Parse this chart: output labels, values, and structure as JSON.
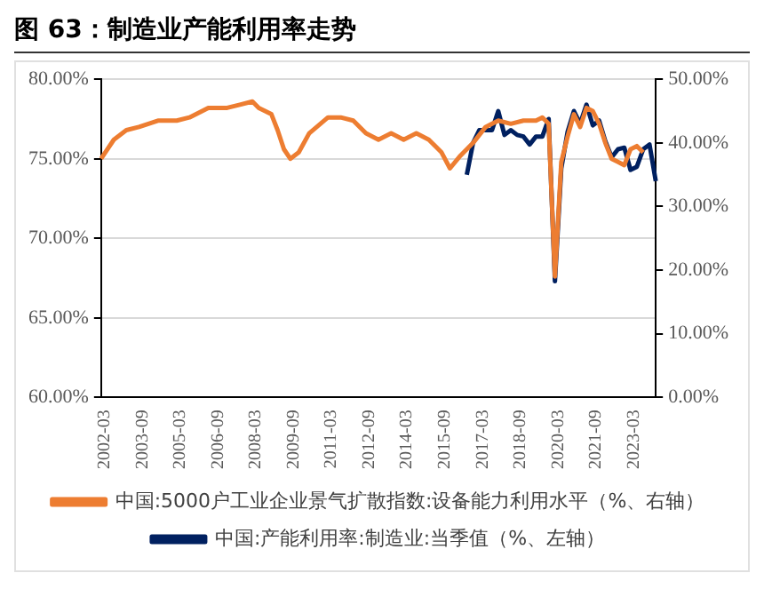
{
  "chart_data": {
    "type": "line",
    "title": "图 63：制造业产能利用率走势",
    "xlim": [
      "2002-03",
      "2024-03"
    ],
    "xticks": [
      "2002-03",
      "2003-09",
      "2005-03",
      "2006-09",
      "2008-03",
      "2009-09",
      "2011-03",
      "2012-09",
      "2014-03",
      "2015-09",
      "2017-03",
      "2018-09",
      "2020-03",
      "2021-09",
      "2023-03"
    ],
    "ylim": [
      60,
      80
    ],
    "yticks": [
      {
        "value": 60,
        "label": "60.00%"
      },
      {
        "value": 65,
        "label": "65.00%"
      },
      {
        "value": 70,
        "label": "70.00%"
      },
      {
        "value": 75,
        "label": "75.00%"
      },
      {
        "value": 80,
        "label": "80.00%"
      }
    ],
    "y2lim": [
      0,
      50
    ],
    "y2ticks": [
      {
        "value": 0,
        "label": "0.00%"
      },
      {
        "value": 10,
        "label": "10.00%"
      },
      {
        "value": 20,
        "label": "20.00%"
      },
      {
        "value": 30,
        "label": "30.00%"
      },
      {
        "value": 40,
        "label": "40.00%"
      },
      {
        "value": 50,
        "label": "50.00%"
      }
    ],
    "grid": "y",
    "legend": "bottom",
    "series": [
      {
        "name": "中国:产能利用率:制造业:当季值（%、左轴）",
        "color": "#002060",
        "x": [
          "2016-09",
          "2016-12",
          "2017-03",
          "2017-06",
          "2017-09",
          "2017-12",
          "2018-03",
          "2018-06",
          "2018-09",
          "2018-12",
          "2019-03",
          "2019-06",
          "2019-09",
          "2019-12",
          "2020-03",
          "2020-06",
          "2020-09",
          "2020-12",
          "2021-03",
          "2021-06",
          "2021-09",
          "2021-12",
          "2022-03",
          "2022-06",
          "2022-09",
          "2022-12",
          "2023-03",
          "2023-06",
          "2023-09",
          "2023-12",
          "2024-03"
        ],
        "values": [
          74.0,
          76.0,
          76.8,
          76.8,
          76.8,
          78.0,
          76.5,
          76.8,
          76.5,
          76.4,
          75.9,
          76.4,
          76.4,
          77.5,
          67.3,
          74.4,
          76.7,
          78.0,
          77.2,
          78.4,
          77.1,
          77.4,
          76.1,
          75.1,
          75.6,
          75.7,
          74.3,
          74.5,
          75.6,
          75.9,
          73.6
        ]
      },
      {
        "name": "中国:5000户工业企业景气扩散指数:设备能力利用水平（%、右轴）",
        "color": "#ed7d31",
        "axis": "y2",
        "x": [
          "2002-03",
          "2002-09",
          "2003-03",
          "2003-09",
          "2004-06",
          "2005-03",
          "2005-09",
          "2006-06",
          "2007-03",
          "2007-09",
          "2008-03",
          "2008-06",
          "2008-12",
          "2009-03",
          "2009-06",
          "2009-09",
          "2010-01",
          "2010-06",
          "2011-03",
          "2011-09",
          "2012-03",
          "2012-09",
          "2013-03",
          "2013-09",
          "2014-03",
          "2014-09",
          "2015-03",
          "2015-09",
          "2016-01",
          "2016-06",
          "2016-12",
          "2017-06",
          "2017-12",
          "2018-06",
          "2018-12",
          "2019-06",
          "2019-09",
          "2019-12",
          "2020-03",
          "2020-06",
          "2020-09",
          "2020-12",
          "2021-03",
          "2021-06",
          "2021-09",
          "2021-12",
          "2022-03",
          "2022-06",
          "2022-09",
          "2022-12",
          "2023-03",
          "2023-06",
          "2023-09"
        ],
        "values": [
          37.5,
          40.5,
          42,
          42.5,
          43.5,
          43.5,
          44,
          45.5,
          45.5,
          46,
          46.5,
          45.5,
          44.5,
          42,
          39,
          37.5,
          38.5,
          41.5,
          44,
          44,
          43.5,
          41.5,
          40.5,
          41.5,
          40.5,
          41.5,
          40.5,
          38.5,
          36,
          38,
          40,
          42.5,
          43.5,
          43,
          43.5,
          43.5,
          44,
          43,
          19,
          37,
          41,
          44.5,
          42.5,
          45.5,
          45,
          43,
          40,
          37.5,
          37,
          36.5,
          39,
          39.5,
          38.5
        ]
      }
    ]
  }
}
